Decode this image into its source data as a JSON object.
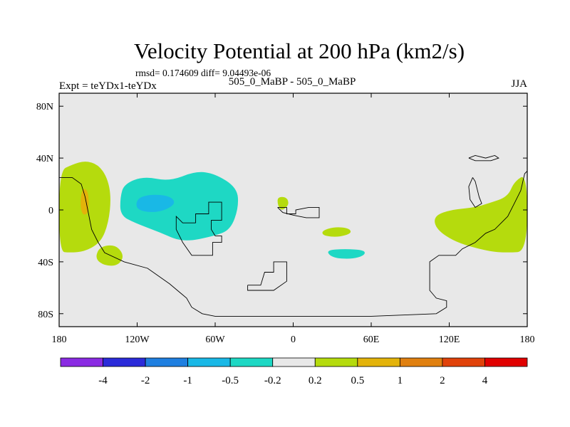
{
  "chart_data": {
    "type": "heatmap",
    "title": "Velocity Potential at 200 hPa (km2/s)",
    "stats_text": "rmsd= 0.174609 diff= 9.04493e-06",
    "left_label": "Expt = teYDx1-teYDx",
    "center_label": "505_0_MaBP - 505_0_MaBP",
    "right_label": "JJA",
    "x_ticks": [
      {
        "value": -180,
        "label": "180"
      },
      {
        "value": -120,
        "label": "120W"
      },
      {
        "value": -60,
        "label": "60W"
      },
      {
        "value": 0,
        "label": "0"
      },
      {
        "value": 60,
        "label": "60E"
      },
      {
        "value": 120,
        "label": "120E"
      },
      {
        "value": 180,
        "label": "180"
      }
    ],
    "y_ticks": [
      {
        "value": 80,
        "label": "80N"
      },
      {
        "value": 40,
        "label": "40N"
      },
      {
        "value": 0,
        "label": "0"
      },
      {
        "value": -40,
        "label": "40S"
      },
      {
        "value": -80,
        "label": "80S"
      }
    ],
    "xlim": [
      -180,
      180
    ],
    "ylim": [
      -90,
      90
    ],
    "colorbar": {
      "colors": [
        "#8a2be2",
        "#2b2bd9",
        "#1f7fe0",
        "#19b8e6",
        "#1ed8c4",
        "#e8e8e8",
        "#b5db0d",
        "#e3b30a",
        "#e08010",
        "#e0420a",
        "#e00000"
      ],
      "labels": [
        "-4",
        "-2",
        "-1",
        "-0.5",
        "-0.2",
        "0.2",
        "0.5",
        "1",
        "2",
        "4"
      ]
    },
    "regions": [
      {
        "name": "positive-anomaly-east-pacific-west",
        "level": "0.2 to 0.5",
        "color": "#b5db0d",
        "lon_lat": [
          [
            -180,
            30
          ],
          [
            -170,
            35
          ],
          [
            -160,
            38
          ],
          [
            -150,
            35
          ],
          [
            -143,
            25
          ],
          [
            -140,
            10
          ],
          [
            -142,
            -10
          ],
          [
            -148,
            -25
          ],
          [
            -160,
            -32
          ],
          [
            -172,
            -33
          ],
          [
            -180,
            -32
          ]
        ]
      },
      {
        "name": "positive-anomaly-east-pacific-core",
        "level": "0.5 to 1",
        "color": "#e3b30a",
        "lon_lat": [
          [
            -162,
            17
          ],
          [
            -158,
            15
          ],
          [
            -157,
            5
          ],
          [
            -158,
            -3
          ],
          [
            -162,
            -4
          ],
          [
            -164,
            5
          ]
        ]
      },
      {
        "name": "positive-anomaly-south-pacific",
        "level": "0.2 to 0.5",
        "color": "#b5db0d",
        "lon_lat": [
          [
            -150,
            -30
          ],
          [
            -143,
            -27
          ],
          [
            -135,
            -28
          ],
          [
            -130,
            -36
          ],
          [
            -135,
            -43
          ],
          [
            -145,
            -43
          ],
          [
            -152,
            -38
          ]
        ]
      },
      {
        "name": "negative-anomaly-south-america",
        "level": "-0.5 to -0.2",
        "color": "#1ed8c4",
        "lon_lat": [
          [
            -130,
            20
          ],
          [
            -115,
            26
          ],
          [
            -95,
            22
          ],
          [
            -75,
            30
          ],
          [
            -60,
            28
          ],
          [
            -43,
            17
          ],
          [
            -42,
            2
          ],
          [
            -48,
            -15
          ],
          [
            -60,
            -20
          ],
          [
            -85,
            -25
          ],
          [
            -103,
            -17
          ],
          [
            -122,
            -10
          ],
          [
            -133,
            -4
          ],
          [
            -133,
            10
          ]
        ]
      },
      {
        "name": "negative-anomaly-south-america-core",
        "level": "-1 to -0.5",
        "color": "#19b8e6",
        "lon_lat": [
          [
            -120,
            9
          ],
          [
            -110,
            12
          ],
          [
            -95,
            11
          ],
          [
            -90,
            5
          ],
          [
            -100,
            -1
          ],
          [
            -112,
            -2
          ],
          [
            -121,
            1
          ]
        ]
      },
      {
        "name": "positive-anomaly-west-africa",
        "level": "0.2 to 0.5",
        "color": "#b5db0d",
        "lon_lat": [
          [
            -12,
            10
          ],
          [
            -5,
            10
          ],
          [
            -3,
            4
          ],
          [
            -9,
            -1
          ],
          [
            -12,
            4
          ]
        ]
      },
      {
        "name": "positive-anomaly-indian-ocean",
        "level": "0.2 to 0.5",
        "color": "#b5db0d",
        "lon_lat": [
          [
            22,
            -16
          ],
          [
            32,
            -13
          ],
          [
            43,
            -14
          ],
          [
            45,
            -18
          ],
          [
            35,
            -21
          ],
          [
            23,
            -20
          ]
        ]
      },
      {
        "name": "negative-anomaly-indian-ocean",
        "level": "-0.5 to -0.2",
        "color": "#1ed8c4",
        "lon_lat": [
          [
            25,
            -31
          ],
          [
            40,
            -30
          ],
          [
            55,
            -31
          ],
          [
            55,
            -35
          ],
          [
            45,
            -38
          ],
          [
            30,
            -37
          ]
        ]
      },
      {
        "name": "positive-anomaly-west-pacific",
        "level": "0.2 to 0.5",
        "color": "#b5db0d",
        "lon_lat": [
          [
            180,
            28
          ],
          [
            170,
            22
          ],
          [
            165,
            10
          ],
          [
            150,
            5
          ],
          [
            140,
            2
          ],
          [
            120,
            0
          ],
          [
            108,
            -5
          ],
          [
            110,
            -15
          ],
          [
            125,
            -25
          ],
          [
            150,
            -32
          ],
          [
            165,
            -33
          ],
          [
            180,
            -32
          ]
        ]
      }
    ],
    "coastlines": [
      {
        "name": "americas-coastline",
        "lon_lat": [
          [
            -180,
            25
          ],
          [
            -170,
            25
          ],
          [
            -163,
            20
          ],
          [
            -160,
            10
          ],
          [
            -158,
            0
          ],
          [
            -155,
            -15
          ],
          [
            -150,
            -25
          ],
          [
            -145,
            -33
          ],
          [
            -130,
            -40
          ],
          [
            -112,
            -45
          ],
          [
            -95,
            -57
          ],
          [
            -82,
            -68
          ],
          [
            -78,
            -75
          ],
          [
            -70,
            -80
          ],
          [
            -60,
            -82
          ],
          [
            0,
            -82
          ],
          [
            60,
            -82
          ],
          [
            110,
            -80
          ],
          [
            118,
            -75
          ],
          [
            118,
            -70
          ],
          [
            110,
            -68
          ],
          [
            105,
            -62
          ],
          [
            105,
            -55
          ],
          [
            105,
            -40
          ],
          [
            112,
            -35
          ],
          [
            125,
            -35
          ],
          [
            130,
            -30
          ],
          [
            140,
            -25
          ],
          [
            148,
            -18
          ],
          [
            155,
            -15
          ],
          [
            165,
            -5
          ],
          [
            170,
            5
          ],
          [
            175,
            15
          ],
          [
            178,
            28
          ],
          [
            180,
            30
          ]
        ]
      },
      {
        "name": "africa-coastline",
        "lon_lat": [
          [
            -75,
            -10
          ],
          [
            -75,
            -3
          ],
          [
            -65,
            -3
          ],
          [
            -65,
            6
          ],
          [
            -55,
            6
          ],
          [
            -55,
            -8
          ],
          [
            -63,
            -8
          ],
          [
            -63,
            -15
          ],
          [
            -60,
            -20
          ],
          [
            -55,
            -20
          ],
          [
            -55,
            -25
          ],
          [
            -62,
            -25
          ],
          [
            -62,
            -35
          ],
          [
            -78,
            -35
          ],
          [
            -85,
            -25
          ],
          [
            -90,
            -15
          ],
          [
            -90,
            -5
          ],
          [
            -85,
            -10
          ],
          [
            -75,
            -10
          ]
        ]
      },
      {
        "name": "europe-coastline",
        "lon_lat": [
          [
            -12,
            2
          ],
          [
            -5,
            2
          ],
          [
            -5,
            -3
          ],
          [
            2,
            -3
          ],
          [
            2,
            0
          ],
          [
            12,
            2
          ],
          [
            20,
            2
          ],
          [
            20,
            -6
          ],
          [
            10,
            -6
          ],
          [
            0,
            -4
          ],
          [
            -8,
            -2
          ],
          [
            -12,
            2
          ]
        ]
      },
      {
        "name": "antarctica-coastline",
        "lon_lat": [
          [
            -35,
            -58
          ],
          [
            -25,
            -58
          ],
          [
            -22,
            -48
          ],
          [
            -15,
            -48
          ],
          [
            -15,
            -40
          ],
          [
            -5,
            -40
          ],
          [
            -5,
            -55
          ],
          [
            -15,
            -62
          ],
          [
            -35,
            -62
          ],
          [
            -35,
            -58
          ]
        ]
      },
      {
        "name": "asia-coastline",
        "lon_lat": [
          [
            135,
            40
          ],
          [
            140,
            42
          ],
          [
            148,
            40
          ],
          [
            155,
            42
          ],
          [
            158,
            40
          ],
          [
            152,
            38
          ],
          [
            140,
            38
          ],
          [
            135,
            40
          ]
        ]
      },
      {
        "name": "pacific-island-coastline",
        "lon_lat": [
          [
            138,
            25
          ],
          [
            140,
            22
          ],
          [
            143,
            10
          ],
          [
            145,
            5
          ],
          [
            140,
            2
          ],
          [
            136,
            8
          ],
          [
            135,
            18
          ],
          [
            138,
            25
          ]
        ]
      }
    ]
  }
}
